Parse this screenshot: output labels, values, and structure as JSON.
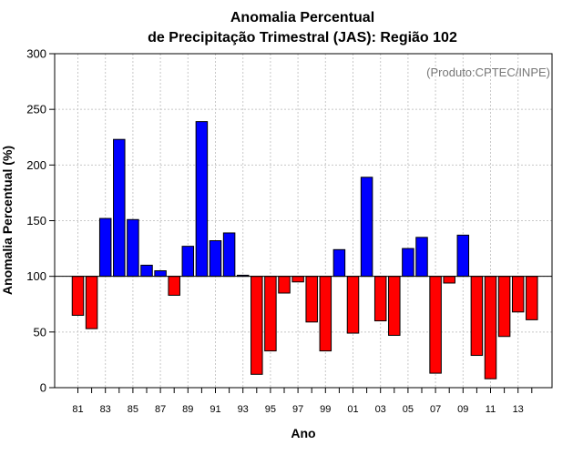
{
  "chart_data": {
    "type": "bar",
    "title": [
      "Anomalia Percentual",
      "de Precipitação Trimestral (JAS): Região 102"
    ],
    "xlabel": "Ano",
    "ylabel": "Anomalia Percentual (%)",
    "credit": "(Produto:CPTEC/INPE)",
    "baseline": 100,
    "ylim": [
      0,
      300
    ],
    "yticks": [
      0,
      50,
      100,
      150,
      200,
      250,
      300
    ],
    "years": [
      "81",
      "82",
      "83",
      "84",
      "85",
      "86",
      "87",
      "88",
      "89",
      "90",
      "91",
      "92",
      "93",
      "94",
      "95",
      "96",
      "97",
      "98",
      "99",
      "00",
      "01",
      "02",
      "03",
      "04",
      "05",
      "06",
      "07",
      "08",
      "09",
      "10",
      "11",
      "12",
      "13",
      "14"
    ],
    "xtick_labels": [
      "81",
      "83",
      "85",
      "87",
      "89",
      "91",
      "93",
      "95",
      "97",
      "99",
      "01",
      "03",
      "05",
      "07",
      "09",
      "11",
      "13"
    ],
    "values": [
      65,
      53,
      152,
      223,
      151,
      110,
      105,
      83,
      127,
      239,
      132,
      139,
      101,
      12,
      33,
      85,
      95,
      59,
      33,
      124,
      49,
      189,
      60,
      47,
      125,
      135,
      13,
      94,
      137,
      29,
      8,
      46,
      68,
      61
    ],
    "colors": {
      "positive": "#0000ff",
      "negative": "#ff0000",
      "grid": "#c8c8c8",
      "frame": "#000000"
    }
  }
}
